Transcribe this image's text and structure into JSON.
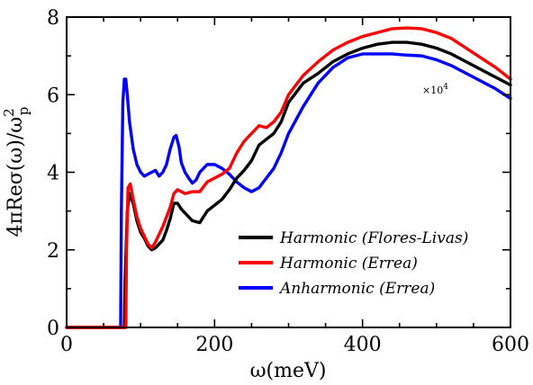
{
  "chart_data": {
    "type": "line",
    "xlabel": "ω(meV)",
    "ylabel": "4πReσ(ω)/ω",
    "ylabel_sup": "2",
    "ylabel_sub": "p",
    "xlim": [
      0,
      600
    ],
    "ylim": [
      0,
      8
    ],
    "xticks": [
      0,
      200,
      400,
      600
    ],
    "yticks": [
      0,
      2,
      4,
      6,
      8
    ],
    "grid": false,
    "legend_position": "lower-right",
    "annotation": "×10",
    "annotation_sup": "4",
    "series": [
      {
        "name": "Harmonic (Flores-Livas)",
        "color": "#000000",
        "x": [
          0,
          78,
          79,
          82,
          85,
          90,
          95,
          100,
          105,
          110,
          115,
          120,
          125,
          130,
          135,
          140,
          145,
          150,
          155,
          160,
          170,
          180,
          190,
          200,
          210,
          220,
          230,
          240,
          250,
          260,
          270,
          280,
          290,
          300,
          320,
          340,
          360,
          380,
          400,
          420,
          440,
          460,
          480,
          500,
          520,
          540,
          560,
          580,
          600
        ],
        "y": [
          0,
          0,
          1.2,
          3.0,
          3.45,
          3.2,
          2.75,
          2.45,
          2.3,
          2.1,
          2.0,
          2.05,
          2.15,
          2.25,
          2.5,
          2.8,
          3.2,
          3.2,
          3.05,
          2.95,
          2.75,
          2.7,
          3.0,
          3.15,
          3.3,
          3.55,
          3.85,
          4.05,
          4.3,
          4.7,
          4.85,
          5.0,
          5.3,
          5.8,
          6.3,
          6.55,
          6.85,
          7.05,
          7.2,
          7.3,
          7.35,
          7.35,
          7.3,
          7.2,
          7.05,
          6.85,
          6.65,
          6.45,
          6.25
        ]
      },
      {
        "name": "Harmonic (Errea)",
        "color": "#ff0000",
        "x": [
          0,
          80,
          81,
          83,
          86,
          90,
          95,
          100,
          105,
          110,
          115,
          120,
          130,
          140,
          145,
          150,
          160,
          170,
          180,
          190,
          200,
          210,
          220,
          230,
          240,
          250,
          260,
          270,
          280,
          290,
          300,
          320,
          340,
          360,
          380,
          400,
          420,
          440,
          460,
          480,
          500,
          520,
          540,
          560,
          580,
          600
        ],
        "y": [
          0,
          0,
          2.0,
          3.6,
          3.7,
          3.3,
          2.85,
          2.55,
          2.35,
          2.15,
          2.05,
          2.2,
          2.6,
          3.1,
          3.45,
          3.55,
          3.45,
          3.5,
          3.5,
          3.75,
          3.85,
          3.95,
          4.1,
          4.5,
          4.8,
          5.0,
          5.2,
          5.15,
          5.3,
          5.55,
          6.0,
          6.5,
          6.85,
          7.15,
          7.35,
          7.5,
          7.6,
          7.7,
          7.72,
          7.7,
          7.6,
          7.45,
          7.2,
          6.95,
          6.7,
          6.4
        ]
      },
      {
        "name": "Anharmonic (Errea)",
        "color": "#0000ff",
        "x": [
          0,
          73,
          74,
          76,
          78,
          80,
          82,
          85,
          90,
          95,
          100,
          105,
          110,
          115,
          120,
          125,
          130,
          135,
          140,
          145,
          148,
          152,
          155,
          160,
          165,
          170,
          175,
          180,
          185,
          190,
          200,
          210,
          220,
          230,
          240,
          250,
          260,
          270,
          280,
          290,
          300,
          320,
          340,
          360,
          380,
          400,
          420,
          440,
          460,
          480,
          500,
          520,
          540,
          560,
          580,
          600
        ],
        "y": [
          0,
          0,
          3.0,
          5.8,
          6.4,
          6.4,
          6.0,
          5.3,
          4.6,
          4.2,
          4.0,
          3.9,
          3.95,
          4.0,
          4.05,
          3.9,
          4.0,
          4.2,
          4.6,
          4.9,
          4.95,
          4.65,
          4.25,
          4.0,
          3.85,
          3.72,
          3.8,
          4.0,
          4.1,
          4.2,
          4.2,
          4.1,
          3.95,
          3.75,
          3.6,
          3.5,
          3.6,
          3.85,
          4.1,
          4.5,
          5.0,
          5.7,
          6.3,
          6.7,
          6.95,
          7.05,
          7.05,
          7.05,
          7.02,
          7.0,
          6.9,
          6.75,
          6.55,
          6.35,
          6.15,
          5.9
        ]
      }
    ]
  }
}
